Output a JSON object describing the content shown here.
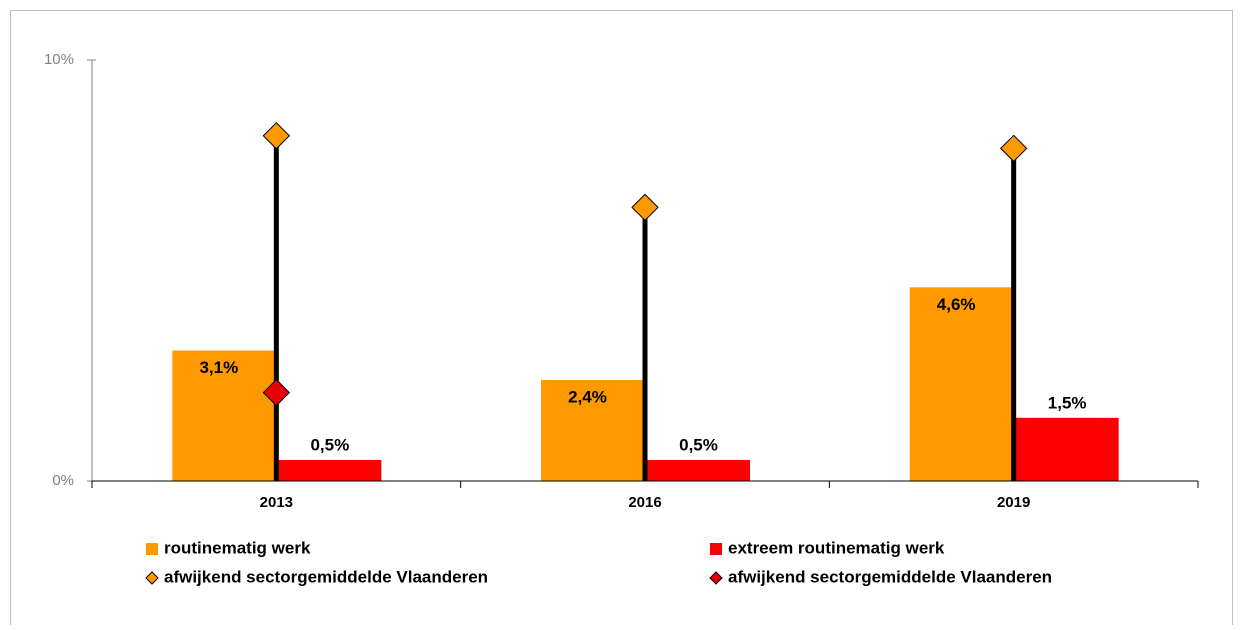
{
  "chart_data": {
    "type": "bar",
    "categories": [
      "2013",
      "2016",
      "2019"
    ],
    "series": [
      {
        "name": "routinematig werk",
        "color": "#ff9900",
        "marker": "bar",
        "values": [
          3.1,
          2.4,
          4.6
        ],
        "value_labels": [
          "3,1%",
          "2,4%",
          "4,6%"
        ]
      },
      {
        "name": "extreem routinematig werk",
        "color": "#ff0000",
        "marker": "bar",
        "values": [
          0.5,
          0.5,
          1.5
        ],
        "value_labels": [
          "0,5%",
          "0,5%",
          "1,5%"
        ]
      },
      {
        "name": "afwijkend sectorgemiddelde Vlaanderen",
        "color": "#ff9900",
        "marker": "diamond",
        "values": [
          8.2,
          6.5,
          7.9
        ]
      },
      {
        "name": "afwijkend sectorgemiddelde Vlaanderen",
        "color": "#e8000b",
        "marker": "diamond",
        "values": [
          2.1,
          null,
          null
        ]
      }
    ],
    "ylim": [
      0,
      10
    ],
    "yticks": [
      {
        "value": 0,
        "label": "0%"
      },
      {
        "value": 10,
        "label": "10%"
      }
    ]
  }
}
